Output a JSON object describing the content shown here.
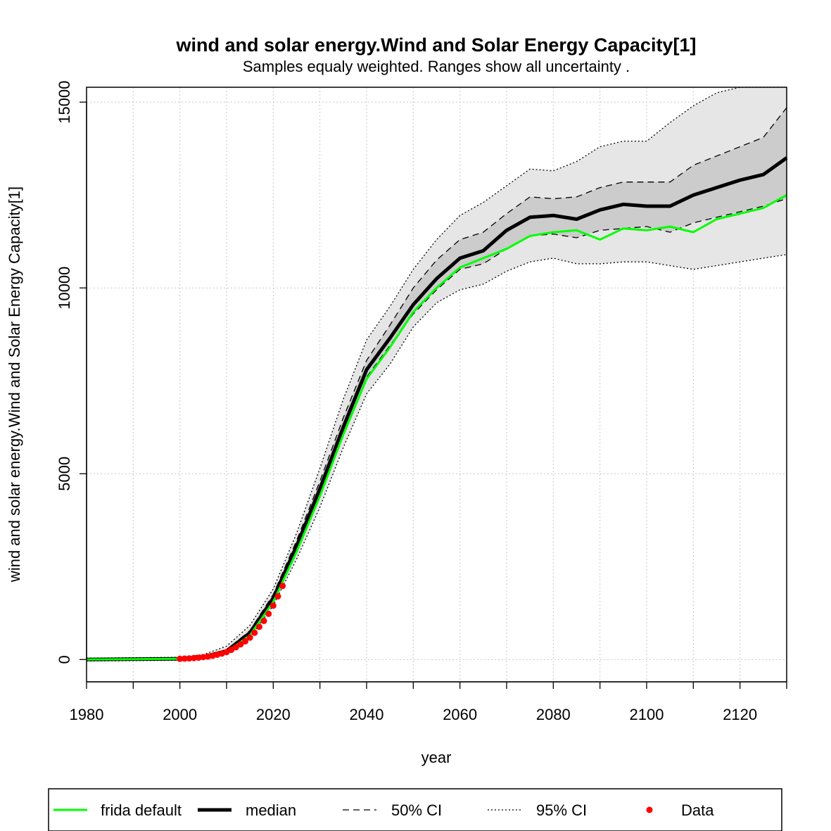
{
  "chart_data": {
    "type": "line",
    "title": "wind and solar energy.Wind and Solar Energy Capacity[1]",
    "subtitle": "Samples equaly weighted. Ranges show  all uncertainty .",
    "xlabel": "year",
    "ylabel": "wind and solar energy.Wind and Solar Energy Capacity[1]",
    "xlim": [
      1980,
      2130
    ],
    "ylim": [
      -600,
      15400
    ],
    "x_ticks": [
      1980,
      1990,
      2000,
      2010,
      2020,
      2030,
      2040,
      2050,
      2060,
      2070,
      2080,
      2090,
      2100,
      2110,
      2120,
      2130
    ],
    "x_tick_labels": [
      "1980",
      "2000",
      "2020",
      "2040",
      "2060",
      "2080",
      "2100",
      "2120"
    ],
    "x_tick_label_values": [
      1980,
      2000,
      2020,
      2040,
      2060,
      2080,
      2100,
      2120
    ],
    "y_ticks": [
      0,
      5000,
      10000,
      15000
    ],
    "y_tick_labels": [
      "0",
      "5000",
      "10000",
      "15000"
    ],
    "grid": true,
    "legend_position": "bottom",
    "colors": {
      "frida_default": "#00ff00",
      "median": "#000000",
      "ci50_fill": "#cccccc",
      "ci95_fill": "#e6e6e6",
      "data": "#ff0000",
      "grid": "#c8c8c8"
    },
    "x": [
      1980,
      2000,
      2005,
      2010,
      2015,
      2020,
      2025,
      2030,
      2035,
      2040,
      2045,
      2050,
      2055,
      2060,
      2065,
      2070,
      2075,
      2080,
      2085,
      2090,
      2095,
      2100,
      2105,
      2110,
      2115,
      2120,
      2125,
      2130
    ],
    "series": [
      {
        "name": "frida default",
        "style": "solid-green",
        "values": [
          0,
          20,
          60,
          200,
          650,
          1550,
          2900,
          4400,
          6050,
          7550,
          8400,
          9350,
          10000,
          10550,
          10800,
          11050,
          11400,
          11500,
          11550,
          11300,
          11600,
          11550,
          11650,
          11500,
          11850,
          12000,
          12150,
          12500
        ]
      },
      {
        "name": "median",
        "style": "thick-black",
        "values": [
          0,
          20,
          70,
          230,
          720,
          1650,
          3050,
          4600,
          6250,
          7800,
          8650,
          9550,
          10250,
          10800,
          11000,
          11550,
          11900,
          11950,
          11850,
          12100,
          12250,
          12200,
          12200,
          12500,
          12700,
          12900,
          13050,
          13500
        ]
      },
      {
        "name": "50% CI upper",
        "style": "dashed",
        "values": [
          0,
          25,
          80,
          260,
          780,
          1750,
          3200,
          4800,
          6500,
          8050,
          9000,
          10000,
          10750,
          11300,
          11500,
          12000,
          12450,
          12400,
          12450,
          12700,
          12850,
          12850,
          12850,
          13300,
          13550,
          13800,
          14050,
          14850
        ]
      },
      {
        "name": "50% CI lower",
        "style": "dashed",
        "values": [
          0,
          15,
          60,
          200,
          660,
          1580,
          2950,
          4450,
          6050,
          7600,
          8450,
          9300,
          9950,
          10500,
          10650,
          11050,
          11400,
          11450,
          11350,
          11550,
          11600,
          11650,
          11500,
          11750,
          11900,
          12050,
          12200,
          12400
        ]
      },
      {
        "name": "95% CI upper",
        "style": "dotted",
        "values": [
          40,
          60,
          130,
          360,
          920,
          1900,
          3400,
          5150,
          7000,
          8600,
          9500,
          10500,
          11300,
          11950,
          12300,
          12750,
          13200,
          13150,
          13400,
          13800,
          13950,
          13950,
          14450,
          14900,
          15250,
          15500,
          15500,
          15500
        ]
      },
      {
        "name": "95% CI lower",
        "style": "dotted",
        "values": [
          -40,
          -20,
          40,
          170,
          580,
          1450,
          2700,
          4100,
          5700,
          7150,
          7950,
          8950,
          9600,
          9950,
          10100,
          10450,
          10700,
          10800,
          10650,
          10650,
          10700,
          10700,
          10600,
          10500,
          10600,
          10700,
          10800,
          10900
        ]
      }
    ],
    "data_points": {
      "name": "Data",
      "x": [
        2000,
        2001,
        2002,
        2003,
        2004,
        2005,
        2006,
        2007,
        2008,
        2009,
        2010,
        2011,
        2012,
        2013,
        2014,
        2015,
        2016,
        2017,
        2018,
        2019,
        2020,
        2021,
        2022
      ],
      "y": [
        20,
        25,
        30,
        40,
        50,
        65,
        80,
        100,
        130,
        160,
        200,
        260,
        330,
        410,
        490,
        590,
        720,
        880,
        1040,
        1230,
        1450,
        1700,
        1980
      ]
    },
    "legend": [
      {
        "label": "frida default",
        "style": "solid-green"
      },
      {
        "label": "median",
        "style": "thick-black"
      },
      {
        "label": "50% CI",
        "style": "dashed"
      },
      {
        "label": "95% CI",
        "style": "dotted"
      },
      {
        "label": "Data",
        "style": "red-dot"
      }
    ]
  }
}
